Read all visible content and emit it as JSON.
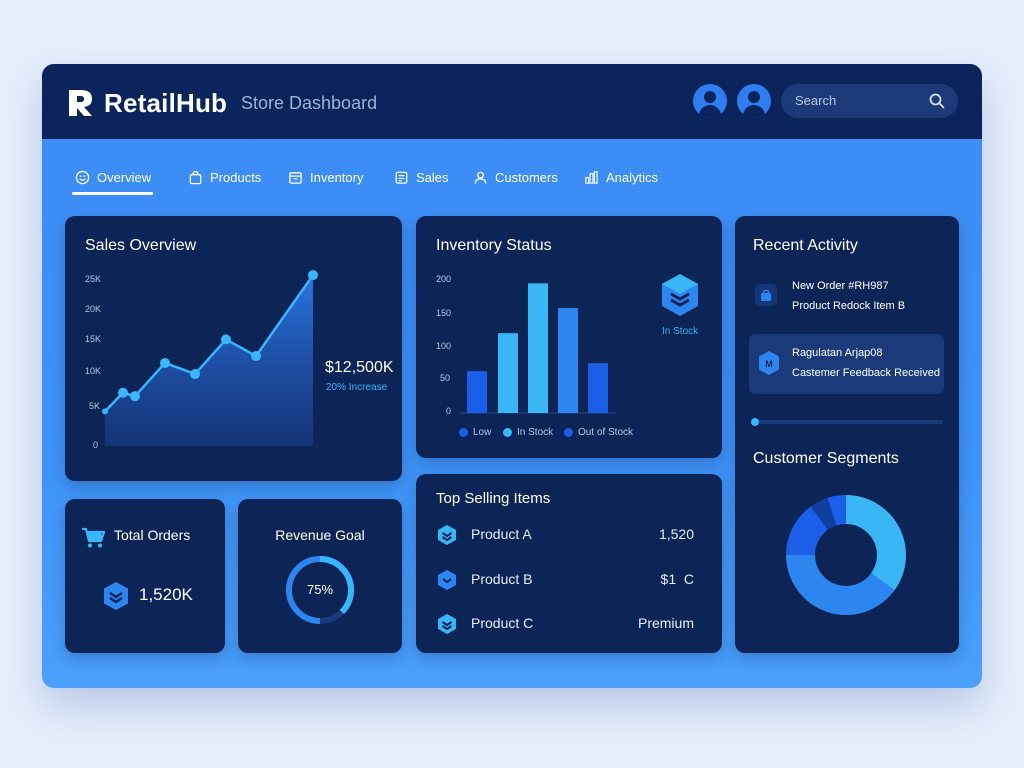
{
  "app": {
    "brand": "RetailHub",
    "subtitle": "Store Dashboard",
    "search_placeholder": "Search"
  },
  "nav": {
    "tabs": [
      {
        "label": "Overview",
        "icon": "smile-icon",
        "active": true
      },
      {
        "label": "Products",
        "icon": "shopping-bag-icon"
      },
      {
        "label": "Inventory",
        "icon": "box-icon"
      },
      {
        "label": "Sales",
        "icon": "receipt-icon"
      },
      {
        "label": "Customers",
        "icon": "user-icon"
      },
      {
        "label": "Analytics",
        "icon": "bar-chart-icon"
      }
    ]
  },
  "sales_overview": {
    "title": "Sales Overview",
    "value": "$12,500K",
    "change": "20% Increase"
  },
  "inventory_status": {
    "title": "Inventory Status",
    "badge_label": "In Stock"
  },
  "recent_activity": {
    "title": "Recent Activity",
    "items": [
      {
        "line1": "New Order #RH987",
        "line2": "Product Redock Item B"
      },
      {
        "line1": "Ragulatan Arjap08",
        "line2": "Castemer Feedback Received"
      }
    ],
    "progress": 0.01
  },
  "customer_segments": {
    "title": "Customer Segments"
  },
  "total_orders": {
    "title": "Total Orders",
    "value": "1,520K"
  },
  "revenue_goal": {
    "title": "Revenue Goal",
    "value_label": "75%",
    "progress": 0.75
  },
  "top_selling": {
    "title": "Top Selling Items",
    "items": [
      {
        "name": "Product A",
        "value": "1,520"
      },
      {
        "name": "Product B",
        "value": "$1  C"
      },
      {
        "name": "Product C",
        "value": "Premium"
      }
    ]
  },
  "colors": {
    "accent": "#3b8cf5",
    "card": "#0c2456",
    "header": "#0b245b",
    "highlight": "#38b6ff"
  },
  "chart_data": [
    {
      "type": "area",
      "title": "Sales Overview",
      "y_ticks": [
        "25K",
        "20K",
        "15K",
        "10K",
        "5K",
        "0"
      ],
      "ylim": [
        0,
        25000
      ],
      "values": [
        5000,
        7700,
        7200,
        12000,
        10400,
        15400,
        13000,
        24700
      ]
    },
    {
      "type": "bar",
      "title": "Inventory Status",
      "y_ticks": [
        "200",
        "150",
        "100",
        "50",
        "0"
      ],
      "ylim": [
        0,
        200
      ],
      "values": [
        63,
        120,
        195,
        158,
        75
      ],
      "bar_colors": [
        "#1b5fe8",
        "#3ab6f5",
        "#3ab6f5",
        "#2d86f0",
        "#1b5fe8"
      ],
      "legend": [
        {
          "label": "Low",
          "color": "#1b5fe8"
        },
        {
          "label": "In Stock",
          "color": "#3ab6f5"
        },
        {
          "label": "Out of Stock",
          "color": "#1b5fe8"
        }
      ]
    },
    {
      "type": "pie",
      "title": "Customer Segments",
      "values": [
        35,
        40,
        15,
        5,
        5
      ],
      "colors": [
        "#3ab6f5",
        "#2d86f0",
        "#1b5fe8",
        "#0f3f9e",
        "#1b5fe8"
      ]
    }
  ]
}
